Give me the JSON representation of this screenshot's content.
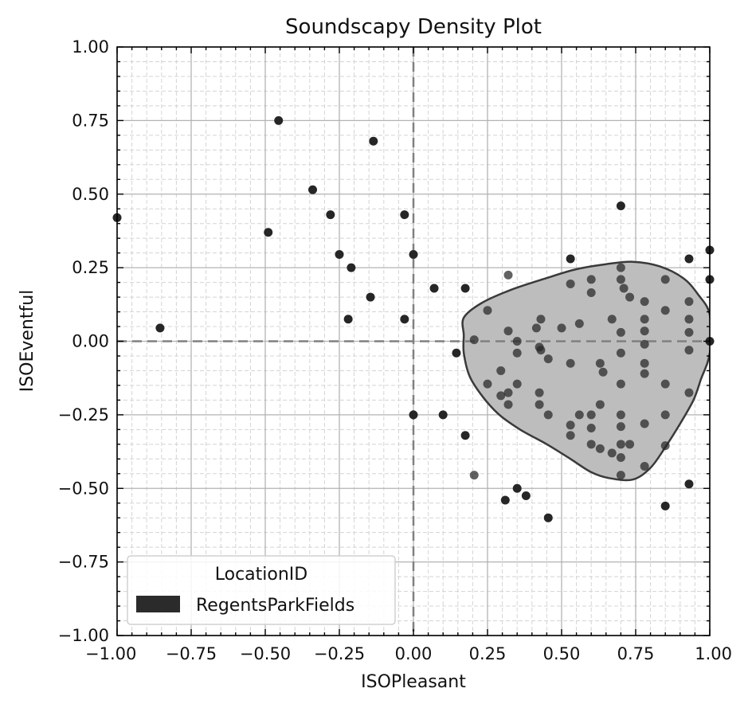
{
  "chart_data": {
    "type": "scatter",
    "title": "Soundscapy Density Plot",
    "xlabel": "ISOPleasant",
    "ylabel": "ISOEventful",
    "xlim": [
      -1.0,
      1.0
    ],
    "ylim": [
      -1.0,
      1.0
    ],
    "xticks": [
      "−1.00",
      "−0.75",
      "−0.50",
      "−0.25",
      "0.00",
      "0.25",
      "0.50",
      "0.75",
      "1.00"
    ],
    "yticks": [
      "−1.00",
      "−0.75",
      "−0.50",
      "−0.25",
      "0.00",
      "0.25",
      "0.50",
      "0.75",
      "1.00"
    ],
    "grid": "major and minor",
    "reference_lines": {
      "x": 0,
      "y": 0,
      "style": "dashed"
    },
    "legend": {
      "title": "LocationID",
      "placement": "lower-left",
      "entries": [
        {
          "label": "RegentsParkFields",
          "color": "#2b2b2b"
        }
      ]
    },
    "colors": {
      "points": "#262626",
      "density_fill": "#bdbdbd",
      "density_edge": "#3a3a3a",
      "reference_line": "#808080"
    },
    "series": [
      {
        "name": "RegentsParkFields",
        "points": [
          [
            -1.0,
            0.42
          ],
          [
            -0.855,
            0.045
          ],
          [
            -0.455,
            0.75
          ],
          [
            -0.49,
            0.37
          ],
          [
            -0.34,
            0.515
          ],
          [
            -0.28,
            0.43
          ],
          [
            -0.25,
            0.295
          ],
          [
            -0.21,
            0.25
          ],
          [
            -0.22,
            0.075
          ],
          [
            -0.145,
            0.15
          ],
          [
            -0.135,
            0.68
          ],
          [
            -0.03,
            0.43
          ],
          [
            -0.03,
            0.075
          ],
          [
            0.0,
            0.295
          ],
          [
            0.0,
            -0.25
          ],
          [
            0.07,
            0.18
          ],
          [
            0.1,
            -0.25
          ],
          [
            0.145,
            -0.04
          ],
          [
            0.175,
            0.18
          ],
          [
            0.175,
            -0.32
          ],
          [
            0.205,
            0.005
          ],
          [
            0.205,
            -0.455
          ],
          [
            0.25,
            0.105
          ],
          [
            0.25,
            -0.145
          ],
          [
            0.295,
            -0.1
          ],
          [
            0.295,
            -0.185
          ],
          [
            0.31,
            -0.54
          ],
          [
            0.32,
            0.225
          ],
          [
            0.32,
            0.035
          ],
          [
            0.32,
            -0.175
          ],
          [
            0.32,
            -0.215
          ],
          [
            0.35,
            0.0
          ],
          [
            0.35,
            -0.04
          ],
          [
            0.35,
            -0.145
          ],
          [
            0.35,
            -0.5
          ],
          [
            0.38,
            -0.525
          ],
          [
            0.415,
            0.045
          ],
          [
            0.43,
            0.075
          ],
          [
            0.425,
            -0.02
          ],
          [
            0.425,
            -0.175
          ],
          [
            0.425,
            -0.215
          ],
          [
            0.43,
            -0.03
          ],
          [
            0.455,
            -0.06
          ],
          [
            0.455,
            -0.25
          ],
          [
            0.455,
            -0.6
          ],
          [
            0.5,
            0.045
          ],
          [
            0.53,
            0.28
          ],
          [
            0.53,
            0.195
          ],
          [
            0.53,
            -0.075
          ],
          [
            0.53,
            -0.285
          ],
          [
            0.53,
            -0.32
          ],
          [
            0.56,
            0.06
          ],
          [
            0.56,
            -0.25
          ],
          [
            0.6,
            0.21
          ],
          [
            0.6,
            0.165
          ],
          [
            0.6,
            -0.25
          ],
          [
            0.6,
            -0.295
          ],
          [
            0.6,
            -0.35
          ],
          [
            0.63,
            -0.075
          ],
          [
            0.63,
            -0.215
          ],
          [
            0.63,
            -0.365
          ],
          [
            0.64,
            -0.105
          ],
          [
            0.67,
            0.075
          ],
          [
            0.67,
            -0.38
          ],
          [
            0.7,
            0.46
          ],
          [
            0.7,
            0.25
          ],
          [
            0.7,
            0.21
          ],
          [
            0.7,
            0.03
          ],
          [
            0.7,
            -0.04
          ],
          [
            0.7,
            -0.145
          ],
          [
            0.7,
            -0.25
          ],
          [
            0.7,
            -0.29
          ],
          [
            0.7,
            -0.35
          ],
          [
            0.7,
            -0.395
          ],
          [
            0.7,
            -0.455
          ],
          [
            0.71,
            0.18
          ],
          [
            0.73,
            0.15
          ],
          [
            0.73,
            -0.35
          ],
          [
            0.78,
            0.135
          ],
          [
            0.78,
            0.075
          ],
          [
            0.78,
            0.035
          ],
          [
            0.78,
            -0.01
          ],
          [
            0.78,
            -0.075
          ],
          [
            0.78,
            -0.11
          ],
          [
            0.78,
            -0.28
          ],
          [
            0.78,
            -0.425
          ],
          [
            0.85,
            0.21
          ],
          [
            0.85,
            0.105
          ],
          [
            0.85,
            -0.145
          ],
          [
            0.85,
            -0.25
          ],
          [
            0.85,
            -0.355
          ],
          [
            0.85,
            -0.56
          ],
          [
            0.93,
            0.28
          ],
          [
            0.93,
            0.135
          ],
          [
            0.93,
            0.075
          ],
          [
            0.93,
            0.03
          ],
          [
            0.93,
            -0.03
          ],
          [
            0.93,
            -0.175
          ],
          [
            0.93,
            -0.485
          ],
          [
            1.0,
            0.31
          ],
          [
            1.0,
            0.21
          ],
          [
            1.0,
            0.0
          ]
        ]
      }
    ],
    "density_contour": [
      [
        0.17,
        0.08
      ],
      [
        0.23,
        0.13
      ],
      [
        0.33,
        0.175
      ],
      [
        0.45,
        0.215
      ],
      [
        0.55,
        0.245
      ],
      [
        0.65,
        0.262
      ],
      [
        0.74,
        0.27
      ],
      [
        0.83,
        0.255
      ],
      [
        0.91,
        0.215
      ],
      [
        0.96,
        0.16
      ],
      [
        1.0,
        0.09
      ],
      [
        1.0,
        -0.04
      ],
      [
        0.97,
        -0.13
      ],
      [
        0.945,
        -0.2
      ],
      [
        0.9,
        -0.28
      ],
      [
        0.85,
        -0.36
      ],
      [
        0.8,
        -0.43
      ],
      [
        0.74,
        -0.47
      ],
      [
        0.66,
        -0.465
      ],
      [
        0.6,
        -0.445
      ],
      [
        0.53,
        -0.4
      ],
      [
        0.45,
        -0.35
      ],
      [
        0.36,
        -0.3
      ],
      [
        0.29,
        -0.25
      ],
      [
        0.235,
        -0.19
      ],
      [
        0.19,
        -0.12
      ],
      [
        0.17,
        -0.04
      ],
      [
        0.17,
        0.02
      ]
    ]
  }
}
